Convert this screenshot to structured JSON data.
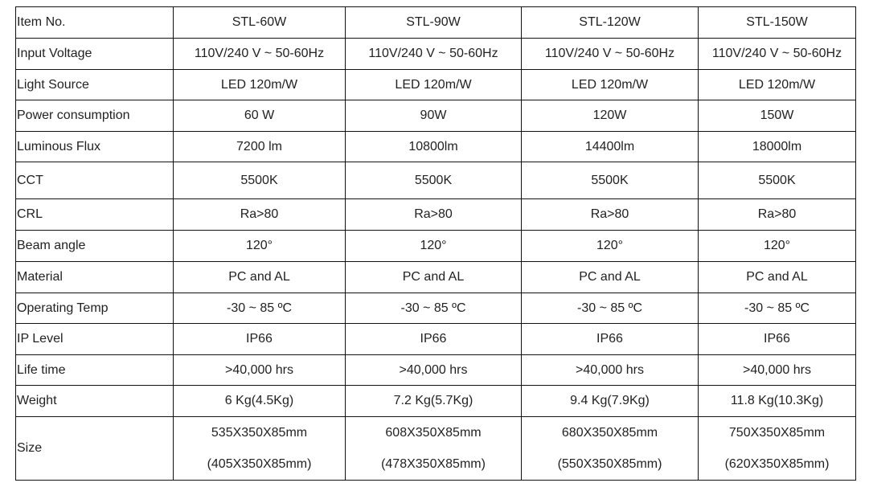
{
  "header": {
    "label": "Item No.",
    "models": [
      "STL-60W",
      "STL-90W",
      "STL-120W",
      "STL-150W"
    ]
  },
  "rows": [
    {
      "label": "Input Voltage",
      "values": [
        "110V/240 V ~  50-60Hz",
        "110V/240 V ~  50-60Hz",
        "110V/240 V ~  50-60Hz",
        "110V/240 V ~  50-60Hz"
      ]
    },
    {
      "label": "Light Source",
      "values": [
        "LED 120m/W",
        "LED 120m/W",
        "LED 120m/W",
        "LED 120m/W"
      ]
    },
    {
      "label": "Power consumption",
      "values": [
        "60 W",
        "90W",
        "120W",
        "150W"
      ]
    },
    {
      "label": "Luminous Flux",
      "values": [
        "7200 lm",
        "10800lm",
        "14400lm",
        "18000lm"
      ]
    },
    {
      "label": "CCT",
      "values": [
        "5500K",
        "5500K",
        "5500K",
        "5500K"
      ]
    },
    {
      "label": "CRL",
      "values": [
        "Ra>80",
        "Ra>80",
        "Ra>80",
        "Ra>80"
      ]
    },
    {
      "label": "Beam angle",
      "values": [
        "120°",
        "120°",
        "120°",
        "120°"
      ]
    },
    {
      "label": "Material",
      "values": [
        "PC and AL",
        "PC and AL",
        "PC and AL",
        "PC and AL"
      ]
    },
    {
      "label": "Operating Temp",
      "values": [
        "-30 ~ 85 ºC",
        "-30 ~ 85 ºC",
        "-30 ~ 85 ºC",
        "-30 ~ 85 ºC"
      ]
    },
    {
      "label": "IP Level",
      "values": [
        "IP66",
        "IP66",
        "IP66",
        "IP66"
      ]
    },
    {
      "label": "Life time",
      "values": [
        ">40,000 hrs",
        ">40,000 hrs",
        ">40,000 hrs",
        ">40,000 hrs"
      ]
    },
    {
      "label": "Weight",
      "values": [
        "6 Kg(4.5Kg)",
        "7.2 Kg(5.7Kg)",
        "9.4 Kg(7.9Kg)",
        "11.8 Kg(10.3Kg)"
      ]
    }
  ],
  "size": {
    "label": "Size",
    "values": [
      [
        "535X350X85mm",
        "(405X350X85mm)"
      ],
      [
        "608X350X85mm",
        "(478X350X85mm)"
      ],
      [
        "680X350X85mm",
        "(550X350X85mm)"
      ],
      [
        "750X350X85mm",
        "(620X350X85mm)"
      ]
    ]
  }
}
